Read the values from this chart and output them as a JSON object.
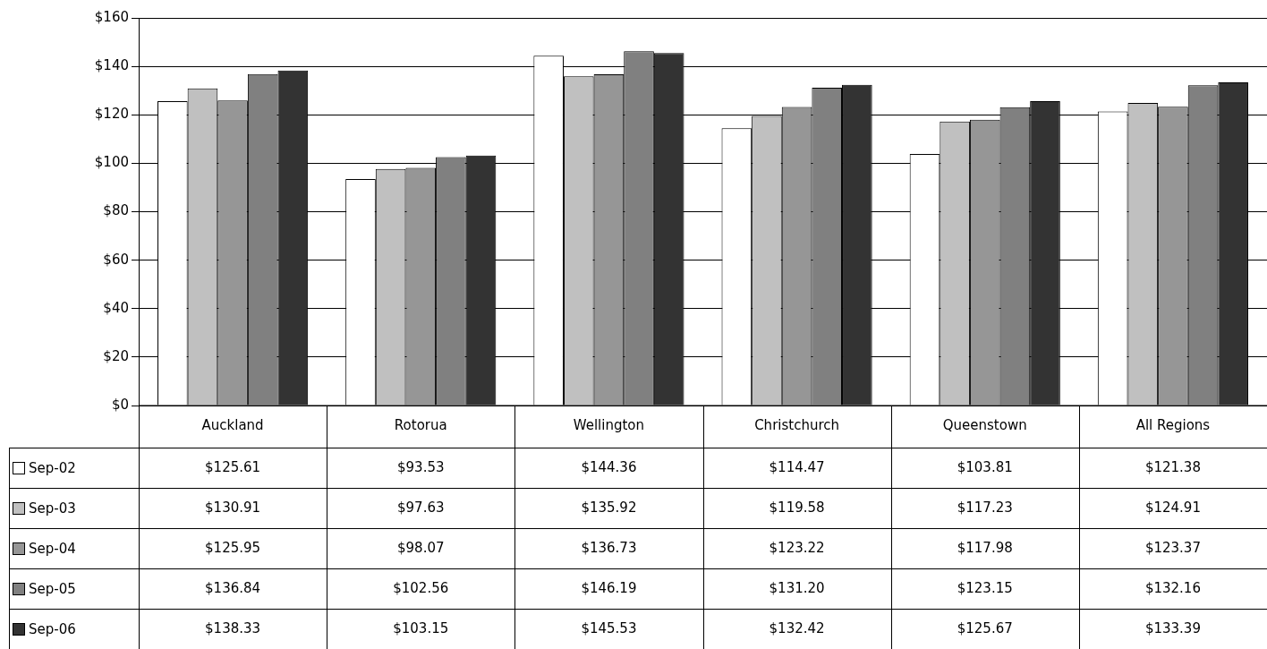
{
  "chart_data": {
    "type": "bar",
    "categories": [
      "Auckland",
      "Rotorua",
      "Wellington",
      "Christchurch",
      "Queenstown",
      "All Regions"
    ],
    "series": [
      {
        "name": "Sep-02",
        "color": "#ffffff",
        "values": [
          125.61,
          93.53,
          144.36,
          114.47,
          103.81,
          121.38
        ],
        "value_labels": [
          "$125.61",
          "$93.53",
          "$144.36",
          "$114.47",
          "$103.81",
          "$121.38"
        ]
      },
      {
        "name": "Sep-03",
        "color": "#c0c0c0",
        "values": [
          130.91,
          97.63,
          135.92,
          119.58,
          117.23,
          124.91
        ],
        "value_labels": [
          "$130.91",
          "$97.63",
          "$135.92",
          "$119.58",
          "$117.23",
          "$124.91"
        ]
      },
      {
        "name": "Sep-04",
        "color": "#969696",
        "values": [
          125.95,
          98.07,
          136.73,
          123.22,
          117.98,
          123.37
        ],
        "value_labels": [
          "$125.95",
          "$98.07",
          "$136.73",
          "$123.22",
          "$117.98",
          "$123.37"
        ]
      },
      {
        "name": "Sep-05",
        "color": "#808080",
        "values": [
          136.84,
          102.56,
          146.19,
          131.2,
          123.15,
          132.16
        ],
        "value_labels": [
          "$136.84",
          "$102.56",
          "$146.19",
          "$131.20",
          "$123.15",
          "$132.16"
        ]
      },
      {
        "name": "Sep-06",
        "color": "#333333",
        "values": [
          138.33,
          103.15,
          145.53,
          132.42,
          125.67,
          133.39
        ],
        "value_labels": [
          "$138.33",
          "$103.15",
          "$145.53",
          "$132.42",
          "$125.67",
          "$133.39"
        ]
      }
    ],
    "ylim": [
      0,
      160
    ],
    "yticks": [
      {
        "value": 0,
        "label": "$0"
      },
      {
        "value": 20,
        "label": "$20"
      },
      {
        "value": 40,
        "label": "$40"
      },
      {
        "value": 60,
        "label": "$60"
      },
      {
        "value": 80,
        "label": "$80"
      },
      {
        "value": 100,
        "label": "$100"
      },
      {
        "value": 120,
        "label": "$120"
      },
      {
        "value": 140,
        "label": "$140"
      },
      {
        "value": 160,
        "label": "$160"
      }
    ],
    "grid": "y",
    "legend": "bottom left"
  }
}
